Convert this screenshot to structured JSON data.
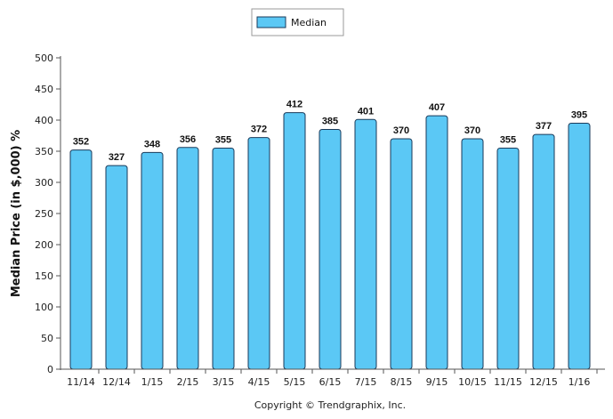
{
  "chart_data": {
    "type": "bar",
    "categories": [
      "11/14",
      "12/14",
      "1/15",
      "2/15",
      "3/15",
      "4/15",
      "5/15",
      "6/15",
      "7/15",
      "8/15",
      "9/15",
      "10/15",
      "11/15",
      "12/15",
      "1/16"
    ],
    "series": [
      {
        "name": "Median",
        "values": [
          352,
          327,
          348,
          356,
          355,
          372,
          412,
          385,
          401,
          370,
          407,
          370,
          355,
          377,
          395
        ]
      }
    ],
    "ylabel": "Median Price (in $,000) %",
    "xlabel": "",
    "ylim": [
      0,
      500
    ],
    "yticks": [
      "0",
      "50",
      "100",
      "150",
      "200",
      "250",
      "300",
      "350",
      "400",
      "450",
      "500"
    ],
    "grid": false,
    "legend": "top-center",
    "bar_color": "#5bc8f5",
    "bar_edge_color": "#1a3a5a"
  },
  "footer": {
    "copyright": "Copyright © Trendgraphix, Inc."
  }
}
